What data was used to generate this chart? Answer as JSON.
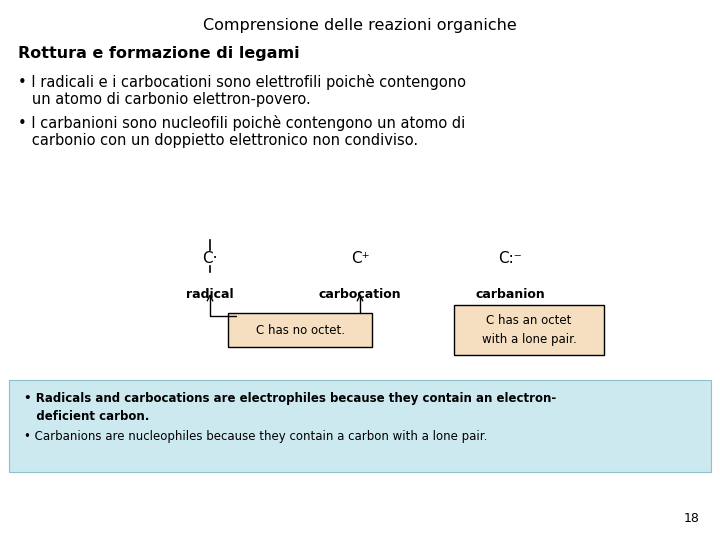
{
  "title": "Comprensione delle reazioni organiche",
  "subtitle": "Rottura e formazione di legami",
  "bullet1_line1": "• I radicali e i carbocationi sono elettrofili poichè contengono",
  "bullet1_line2": "   un atomo di carbonio elettron-povero.",
  "bullet2_line1": "• I carbanioni sono nucleofili poichè contengono un atomo di",
  "bullet2_line2": "   carbonio con un doppietto elettronico non condiviso.",
  "radical_symbol": "C·",
  "carbocation_symbol": "C⁺",
  "carbanion_symbol": "C:⁻",
  "radical_label": "radical",
  "carbocation_label": "carbocation",
  "carbanion_label": "carbanion",
  "box1_text": "C has no octet.",
  "box2_line1": "C has an octet",
  "box2_line2": "with a lone pair.",
  "blue_b1_l1": "• Radicals and carbocations are electrophiles because they contain an electron-",
  "blue_b1_l2": "   deficient carbon.",
  "blue_b2": "• Carbanions are nucleophiles because they contain a carbon with a lone pair.",
  "page_number": "18",
  "bg_color": "#ffffff",
  "blue_box_color": "#cde9f0",
  "orange_box_color": "#f5dfc0",
  "title_fontsize": 11.5,
  "subtitle_fontsize": 11.5,
  "body_fontsize": 10.5,
  "label_fontsize": 9,
  "blue_fontsize": 8.5
}
